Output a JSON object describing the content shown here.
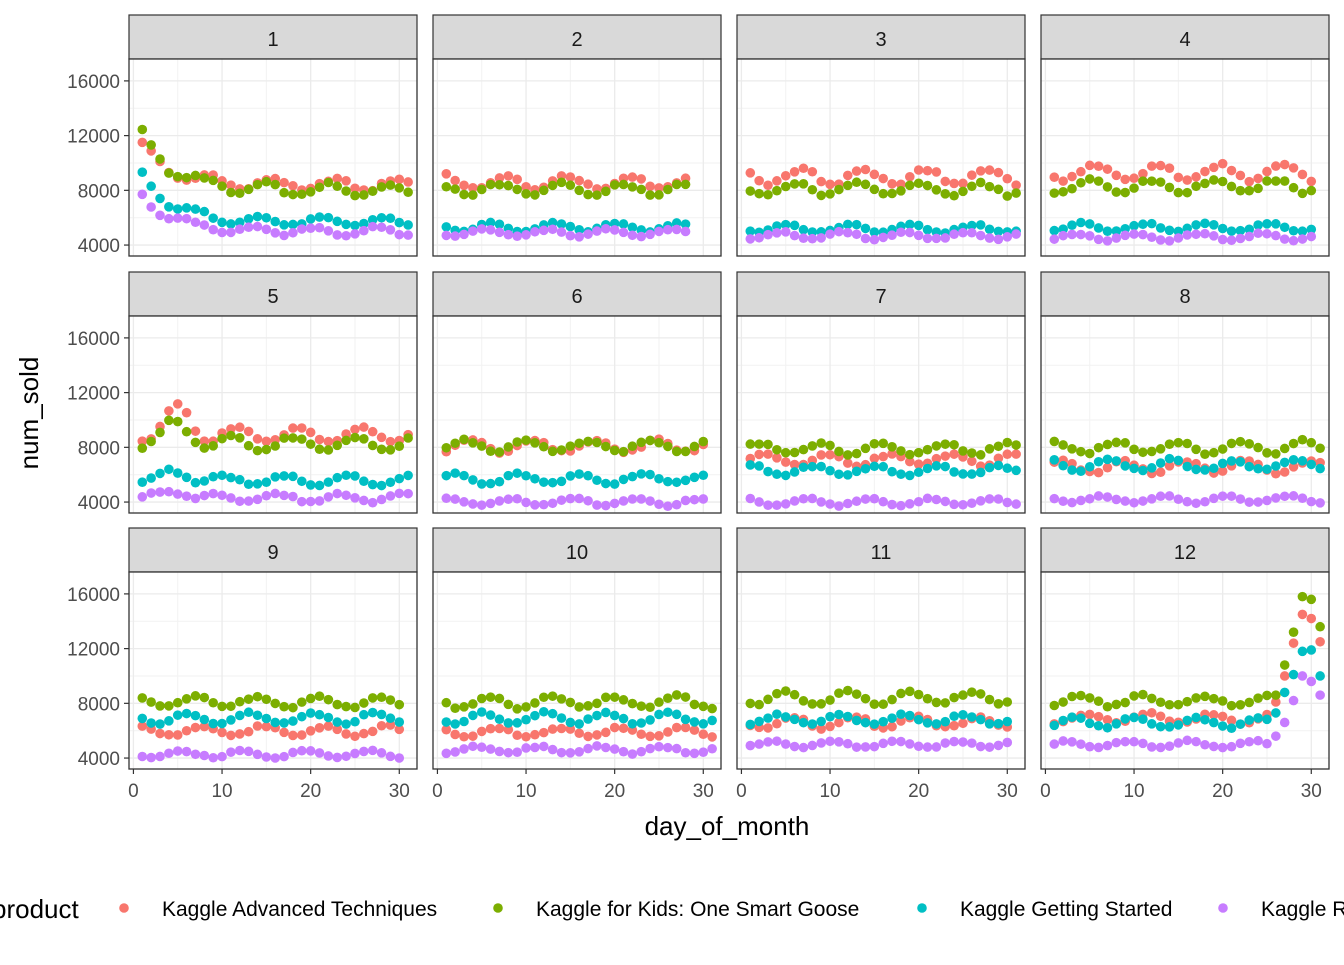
{
  "chart_data": {
    "type": "scatter",
    "facet_variable": "month",
    "facets": [
      "1",
      "2",
      "3",
      "4",
      "5",
      "6",
      "7",
      "8",
      "9",
      "10",
      "11",
      "12"
    ],
    "xlabel": "day_of_month",
    "ylabel": "num_sold",
    "x_ticks": [
      0,
      10,
      20,
      30
    ],
    "y_ticks": [
      4000,
      8000,
      12000,
      16000
    ],
    "xlim": [
      -0.5,
      32
    ],
    "ylim": [
      3200,
      17600
    ],
    "grid": true,
    "legend": {
      "title": "product",
      "position": "bottom",
      "entries": [
        "Kaggle Advanced Techniques",
        "Kaggle for Kids: One Smart Goose",
        "Kaggle Getting Started",
        "Kaggle Recipe Book"
      ]
    },
    "series_colors": {
      "Kaggle Advanced Techniques": "#F8766D",
      "Kaggle for Kids: One Smart Goose": "#7CAE00",
      "Kaggle Getting Started": "#00BFC4",
      "Kaggle Recipe Book": "#C77CFF"
    },
    "series_summary": {
      "1": {
        "days": 31,
        "Kaggle Advanced Techniques": {
          "start": 11100,
          "mean": 8400,
          "amp": 450
        },
        "Kaggle for Kids: One Smart Goose": {
          "start": 12100,
          "mean": 8000,
          "amp": 450
        },
        "Kaggle Getting Started": {
          "start": 9100,
          "mean": 5700,
          "amp": 300
        },
        "Kaggle Recipe Book": {
          "start": 7600,
          "mean": 5000,
          "amp": 300
        }
      },
      "2": {
        "days": 28,
        "Kaggle Advanced Techniques": {
          "mean": 8600,
          "amp": 500
        },
        "Kaggle for Kids: One Smart Goose": {
          "mean": 8100,
          "amp": 400
        },
        "Kaggle Getting Started": {
          "mean": 5300,
          "amp": 300
        },
        "Kaggle Recipe Book": {
          "mean": 4900,
          "amp": 250
        }
      },
      "3": {
        "days": 31,
        "Kaggle Advanced Techniques": {
          "mean": 9000,
          "amp": 550
        },
        "Kaggle for Kids: One Smart Goose": {
          "mean": 8100,
          "amp": 450
        },
        "Kaggle Getting Started": {
          "mean": 5200,
          "amp": 300
        },
        "Kaggle Recipe Book": {
          "mean": 4700,
          "amp": 250
        }
      },
      "4": {
        "days": 30,
        "Kaggle Advanced Techniques": {
          "mean": 9300,
          "amp": 550
        },
        "Kaggle for Kids: One Smart Goose": {
          "mean": 8300,
          "amp": 450
        },
        "Kaggle Getting Started": {
          "mean": 5300,
          "amp": 300
        },
        "Kaggle Recipe Book": {
          "mean": 4600,
          "amp": 250
        }
      },
      "5": {
        "days": 31,
        "Kaggle Advanced Techniques": {
          "mean": 8900,
          "amp": 600,
          "peak_day": 5,
          "peak": 11000
        },
        "Kaggle for Kids: One Smart Goose": {
          "mean": 8300,
          "amp": 500,
          "peak_day": 5,
          "peak": 9900
        },
        "Kaggle Getting Started": {
          "mean": 5600,
          "amp": 350,
          "peak_day": 5,
          "peak": 6400
        },
        "Kaggle Recipe Book": {
          "mean": 4300,
          "amp": 300,
          "peak_day": 5,
          "peak": 5000
        }
      },
      "6": {
        "days": 30,
        "Kaggle Advanced Techniques": {
          "mean": 8100,
          "amp": 450
        },
        "Kaggle for Kids: One Smart Goose": {
          "mean": 8100,
          "amp": 400
        },
        "Kaggle Getting Started": {
          "mean": 5700,
          "amp": 350
        },
        "Kaggle Recipe Book": {
          "mean": 4000,
          "amp": 250
        }
      },
      "7": {
        "days": 31,
        "Kaggle Advanced Techniques": {
          "mean": 7100,
          "amp": 400
        },
        "Kaggle for Kids: One Smart Goose": {
          "mean": 7900,
          "amp": 400
        },
        "Kaggle Getting Started": {
          "mean": 6300,
          "amp": 350
        },
        "Kaggle Recipe Book": {
          "mean": 4000,
          "amp": 250
        }
      },
      "8": {
        "days": 31,
        "Kaggle Advanced Techniques": {
          "mean": 6600,
          "amp": 450
        },
        "Kaggle for Kids: One Smart Goose": {
          "mean": 8000,
          "amp": 450
        },
        "Kaggle Getting Started": {
          "mean": 6700,
          "amp": 400
        },
        "Kaggle Recipe Book": {
          "mean": 4200,
          "amp": 250
        }
      },
      "9": {
        "days": 30,
        "Kaggle Advanced Techniques": {
          "mean": 6000,
          "amp": 350
        },
        "Kaggle for Kids: One Smart Goose": {
          "mean": 8100,
          "amp": 400
        },
        "Kaggle Getting Started": {
          "mean": 6900,
          "amp": 400
        },
        "Kaggle Recipe Book": {
          "mean": 4300,
          "amp": 250
        }
      },
      "10": {
        "days": 31,
        "Kaggle Advanced Techniques": {
          "mean": 5900,
          "amp": 350
        },
        "Kaggle for Kids: One Smart Goose": {
          "mean": 8100,
          "amp": 450
        },
        "Kaggle Getting Started": {
          "mean": 6900,
          "amp": 400
        },
        "Kaggle Recipe Book": {
          "mean": 4600,
          "amp": 250
        }
      },
      "11": {
        "days": 30,
        "Kaggle Advanced Techniques": {
          "mean": 6600,
          "amp": 400
        },
        "Kaggle for Kids: One Smart Goose": {
          "mean": 8400,
          "amp": 450
        },
        "Kaggle Getting Started": {
          "mean": 6800,
          "amp": 350
        },
        "Kaggle Recipe Book": {
          "mean": 5000,
          "amp": 250
        }
      },
      "12": {
        "days": 31,
        "Kaggle Advanced Techniques": {
          "mean": 6900,
          "amp": 350,
          "end": [
            8100,
            10000,
            12400,
            14500,
            14200,
            12500
          ]
        },
        "Kaggle for Kids: One Smart Goose": {
          "mean": 8200,
          "amp": 400,
          "end": [
            8600,
            10800,
            13200,
            15800,
            15600,
            13600
          ]
        },
        "Kaggle Getting Started": {
          "mean": 6600,
          "amp": 350,
          "end": [
            7300,
            8800,
            10100,
            11800,
            11900,
            10000
          ]
        },
        "Kaggle Recipe Book": {
          "mean": 5000,
          "amp": 250,
          "end": [
            5600,
            6600,
            8200,
            10000,
            9600,
            8600
          ]
        }
      }
    }
  }
}
